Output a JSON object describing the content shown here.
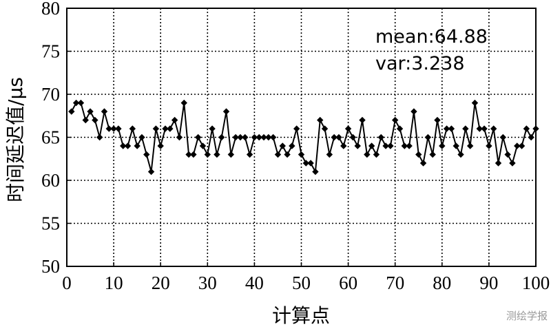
{
  "chart_data": {
    "type": "line",
    "xlabel": "计算点",
    "ylabel": "时间延迟值/μs",
    "xlim": [
      0,
      100
    ],
    "ylim": [
      50,
      80
    ],
    "xticks": [
      0,
      10,
      20,
      30,
      40,
      50,
      60,
      70,
      80,
      90,
      100
    ],
    "yticks": [
      50,
      55,
      60,
      65,
      70,
      75,
      80
    ],
    "grid": true,
    "marker": "diamond",
    "series": [
      {
        "x": [
          1,
          2,
          3,
          4,
          5,
          6,
          7,
          8,
          9,
          10,
          11,
          12,
          13,
          14,
          15,
          16,
          17,
          18,
          19,
          20,
          21,
          22,
          23,
          24,
          25,
          26,
          27,
          28,
          29,
          30,
          31,
          32,
          33,
          34,
          35,
          36,
          37,
          38,
          39,
          40,
          41,
          42,
          43,
          44,
          45,
          46,
          47,
          48,
          49,
          50,
          51,
          52,
          53,
          54,
          55,
          56,
          57,
          58,
          59,
          60,
          61,
          62,
          63,
          64,
          65,
          66,
          67,
          68,
          69,
          70,
          71,
          72,
          73,
          74,
          75,
          76,
          77,
          78,
          79,
          80,
          81,
          82,
          83,
          84,
          85,
          86,
          87,
          88,
          89,
          90,
          91,
          92,
          93,
          94,
          95,
          96,
          97,
          98,
          99,
          100
        ],
        "values": [
          68,
          69,
          69,
          67,
          68,
          67,
          65,
          68,
          66,
          66,
          66,
          64,
          64,
          66,
          64,
          65,
          63,
          61,
          66,
          64,
          66,
          66,
          67,
          65,
          69,
          63,
          63,
          65,
          64,
          63,
          66,
          63,
          65,
          68,
          63,
          65,
          65,
          65,
          63,
          65,
          65,
          65,
          65,
          65,
          63,
          64,
          63,
          64,
          66,
          63,
          62,
          62,
          61,
          67,
          66,
          63,
          65,
          65,
          64,
          66,
          65,
          64,
          67,
          63,
          64,
          63,
          65,
          64,
          64,
          67,
          66,
          64,
          64,
          68,
          63,
          62,
          65,
          63,
          67,
          64,
          66,
          66,
          64,
          63,
          66,
          64,
          69,
          66,
          66,
          64,
          66,
          62,
          65,
          63,
          62,
          64,
          64,
          66,
          65,
          66
        ]
      }
    ],
    "annotations": [
      "mean:64.88",
      "var:3.238"
    ]
  },
  "watermark": "测绘学报"
}
